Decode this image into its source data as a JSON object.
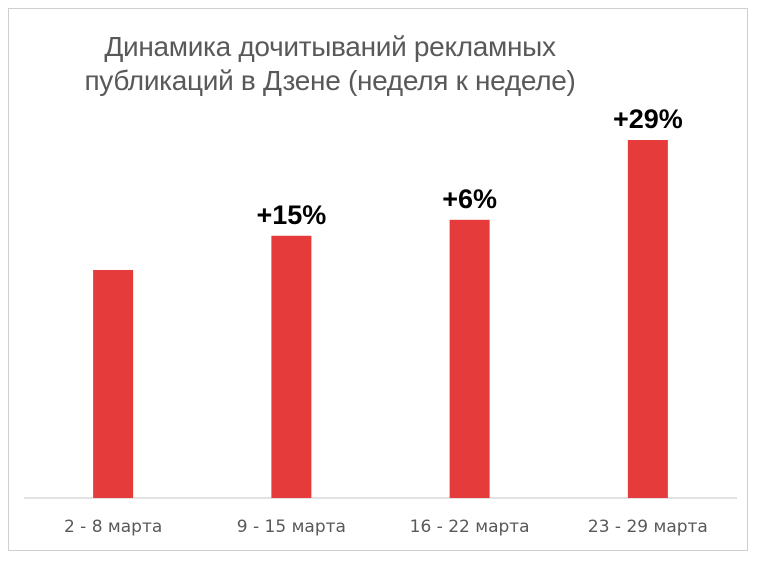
{
  "chart_data": {
    "type": "bar",
    "title": "Динамика дочитываний рекламных публикаций в Дзене (неделя к неделе)",
    "categories": [
      "2 - 8 марта",
      "9 - 15 марта",
      "16 - 22 марта",
      "23 - 29 марта"
    ],
    "data_labels": [
      "",
      "+15%",
      "+6%",
      "+29%"
    ],
    "values": [
      100,
      115,
      122,
      157
    ],
    "ylim": [
      0,
      157
    ],
    "xlabel": "",
    "ylabel": "",
    "grid": false,
    "legend": "none",
    "colors": {
      "bar": "#E63B3B",
      "axis": "#D9D9D9",
      "tick_text": "#595959",
      "title": "#595959"
    }
  }
}
